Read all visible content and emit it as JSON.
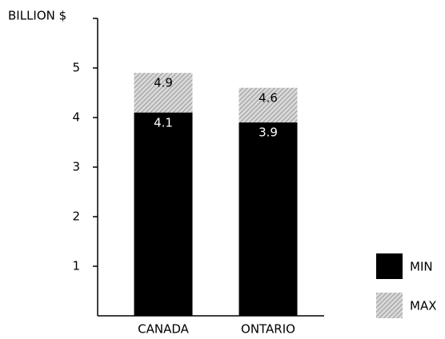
{
  "chart_data": {
    "type": "bar",
    "y_label": "BILLION $",
    "categories": [
      "CANADA",
      "ONTARIO"
    ],
    "series": [
      {
        "name": "MAX",
        "color": "#a9a9a9",
        "hatch": true,
        "values": [
          4.9,
          4.6
        ]
      },
      {
        "name": "MIN",
        "color": "#000000",
        "hatch": false,
        "values": [
          4.1,
          3.9
        ]
      }
    ],
    "ylim": [
      0,
      6
    ],
    "yticks": [
      1,
      2,
      3,
      4,
      5
    ],
    "grid": false,
    "legend": "lower right"
  }
}
